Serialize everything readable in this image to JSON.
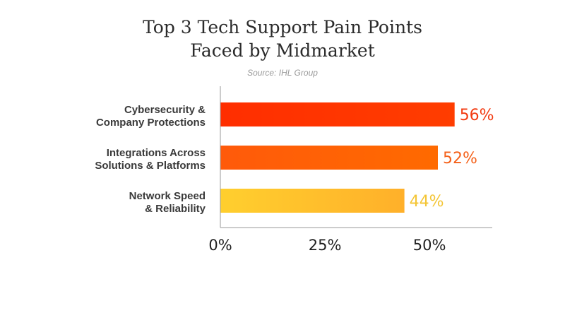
{
  "title": {
    "line1": "Top 3 Tech Support Pain Points",
    "line2": "Faced by Midmarket"
  },
  "source": "Source: IHL Group",
  "chart_data": {
    "type": "bar",
    "orientation": "horizontal",
    "categories": [
      [
        "Cybersecurity &",
        "Company Protections"
      ],
      [
        "Integrations Across",
        "Solutions & Platforms"
      ],
      [
        "Network Speed",
        "& Reliability"
      ]
    ],
    "values": [
      56,
      52,
      44
    ],
    "value_labels": [
      "56%",
      "52%",
      "44%"
    ],
    "xlim": [
      0,
      65
    ],
    "xticks": [
      0,
      25,
      50
    ],
    "xtick_labels": [
      "0%",
      "25%",
      "50%"
    ],
    "grid": false,
    "colors": {
      "bars": [
        [
          "#ff2e00",
          "#ff3d00"
        ],
        [
          "#ff5a0a",
          "#ff6a00"
        ],
        [
          "#ffcf2e",
          "#ffb02a"
        ]
      ],
      "value_labels": [
        "#f23b12",
        "#f4611a",
        "#f4c535"
      ],
      "axis": "#9a9a9a"
    }
  }
}
